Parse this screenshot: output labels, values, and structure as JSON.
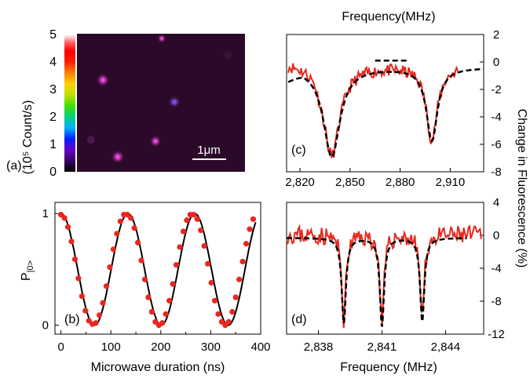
{
  "figure": {
    "panel_a": {
      "label": "(a)",
      "colorbar_label": "(10⁵ Count/s)",
      "colorbar_ticks": [
        "0",
        "1",
        "2",
        "3",
        "4",
        "5"
      ],
      "colorbar_range": [
        0,
        5
      ],
      "scale_bar": "1μm",
      "colors": [
        "#000000",
        "#3a0066",
        "#6a00c8",
        "#0020ff",
        "#00b0ff",
        "#00d080",
        "#40e000",
        "#c0e000",
        "#ffd000",
        "#ff8000",
        "#ff2000",
        "#ff0000",
        "#ff6060",
        "#ffb0b0",
        "#ffffff"
      ]
    },
    "panel_b": {
      "label": "(b)"
    },
    "panel_c": {
      "label": "(c)"
    },
    "panel_d": {
      "label": "(d)"
    },
    "right_axis_label": "Change in Fluorescence (%)"
  },
  "chart_data": [
    {
      "type": "scatter",
      "panel": "b",
      "xlabel": "Microwave duration (ns)",
      "ylabel": "P|0>",
      "xlim": [
        -12,
        400
      ],
      "ylim": [
        -0.08,
        1.1
      ],
      "xticks": [
        0,
        100,
        200,
        300,
        400
      ],
      "yticks": [
        0,
        1
      ],
      "series": [
        {
          "values_x": [
            0,
            7,
            14,
            21,
            28,
            35,
            42,
            49,
            56,
            63,
            70,
            77,
            84,
            91,
            98,
            105,
            112,
            119,
            126,
            133,
            140,
            147,
            154,
            161,
            168,
            175,
            182,
            189,
            196,
            203,
            210,
            217,
            224,
            231,
            238,
            245,
            252,
            259,
            266,
            273,
            280,
            287,
            294,
            301,
            308,
            315,
            322,
            329,
            336,
            343,
            350,
            357,
            364,
            371,
            378,
            385
          ],
          "values_y": [
            0.99,
            0.96,
            0.88,
            0.75,
            0.59,
            0.42,
            0.26,
            0.13,
            0.04,
            0.01,
            0.02,
            0.09,
            0.2,
            0.35,
            0.52,
            0.68,
            0.82,
            0.93,
            0.99,
            0.99,
            0.96,
            0.87,
            0.74,
            0.58,
            0.41,
            0.25,
            0.12,
            0.03,
            0.0,
            0.02,
            0.1,
            0.22,
            0.37,
            0.54,
            0.7,
            0.84,
            0.94,
            0.99,
            0.99,
            0.95,
            0.85,
            0.71,
            0.55,
            0.38,
            0.22,
            0.1,
            0.03,
            0.0,
            0.03,
            0.12,
            0.25,
            0.41,
            0.57,
            0.73,
            0.86,
            0.95
          ],
          "color": "#e8281e"
        },
        {
          "fit_period": 134,
          "fit_offset": 0.5,
          "fit_amplitude": 0.5,
          "color": "#000000"
        }
      ]
    },
    {
      "type": "line",
      "panel": "c",
      "xlabel": "Frequency(MHz)",
      "ylabel": "Change in Fluorescence (%)",
      "xlim": [
        2812,
        2930
      ],
      "ylim": [
        -8,
        2
      ],
      "xticks": [
        2820,
        2850,
        2880,
        2910
      ],
      "xtick_labels": [
        "2,820",
        "2,850",
        "2,880",
        "2,910"
      ],
      "yticks": [
        2,
        0,
        -2,
        -4,
        -6,
        -8
      ],
      "dips": [
        {
          "center": 2839,
          "depth": -6.8,
          "width": 6
        },
        {
          "center": 2899,
          "depth": -5.6,
          "width": 4
        }
      ],
      "fit_baseline": -0.3,
      "raw_x_range": [
        2813,
        2915
      ],
      "short_fit_segment": [
        2865,
        2885
      ],
      "colors": {
        "data": "#e8281e",
        "fit": "#000000"
      }
    },
    {
      "type": "line",
      "panel": "d",
      "xlabel": "Frequency (MHz)",
      "ylabel": "Change in Fluorescence (%)",
      "xlim": [
        2836.5,
        2845.8
      ],
      "ylim": [
        -12,
        4
      ],
      "xticks": [
        2838,
        2841,
        2844
      ],
      "xtick_labels": [
        "2,838",
        "2,841",
        "2,844"
      ],
      "yticks": [
        4,
        0,
        -4,
        -8,
        -12
      ],
      "dips": [
        {
          "center": 2839.2,
          "depth": -10.6,
          "width": 0.12
        },
        {
          "center": 2841.0,
          "depth": -11.0,
          "width": 0.12
        },
        {
          "center": 2842.9,
          "depth": -10.4,
          "width": 0.12
        }
      ],
      "fit_baseline": -0.3,
      "colors": {
        "data": "#e8281e",
        "fit": "#000000"
      }
    }
  ]
}
